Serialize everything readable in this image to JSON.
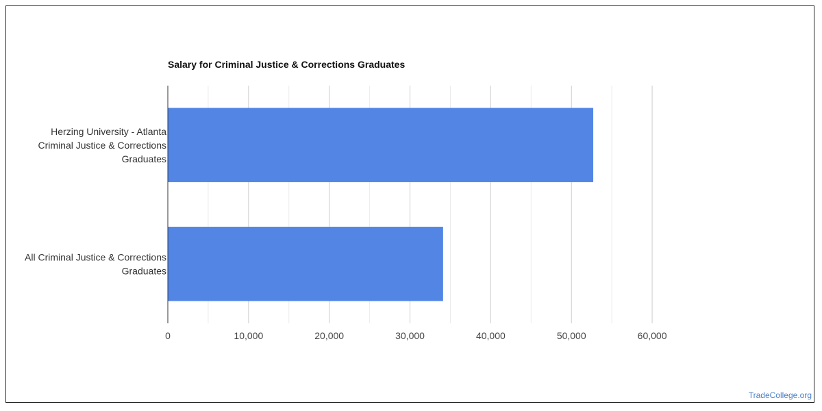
{
  "chart_data": {
    "type": "bar",
    "orientation": "horizontal",
    "title": "Salary for Criminal Justice & Corrections Graduates",
    "categories": [
      [
        "Herzing University - Atlanta",
        "Criminal Justice & Corrections",
        "Graduates"
      ],
      [
        "All Criminal Justice & Corrections",
        "Graduates"
      ]
    ],
    "values": [
      52700,
      34100
    ],
    "xlim": [
      0,
      65000
    ],
    "xticks": [
      0,
      10000,
      20000,
      30000,
      40000,
      50000,
      60000
    ],
    "xtick_labels": [
      "0",
      "10,000",
      "20,000",
      "30,000",
      "40,000",
      "50,000",
      "60,000"
    ],
    "grid": true,
    "bar_color": "#5386e4"
  },
  "watermark": "TradeCollege.org"
}
